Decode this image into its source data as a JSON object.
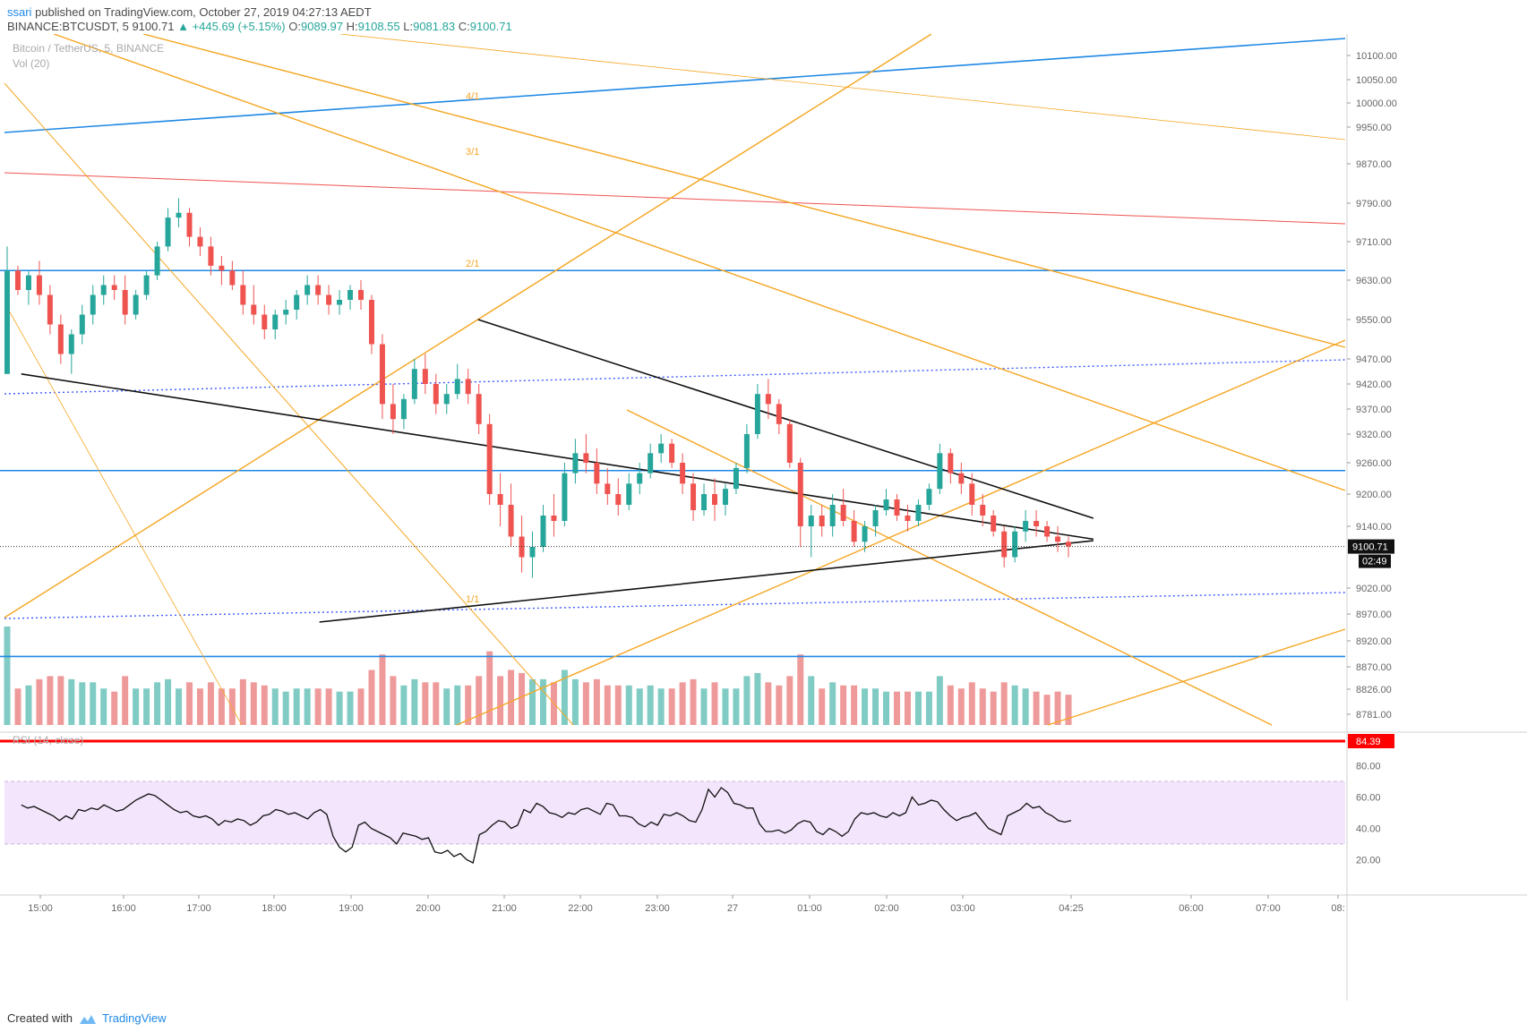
{
  "header": {
    "user": "ssari",
    "published": "published on TradingView.com, October 27, 2019 04:27:13 AEDT",
    "symbol": "BINANCE:BTCUSDT, 5",
    "last": "9100.71",
    "change_arrow": "▲",
    "change": "+445.69 (+5.15%)",
    "o_label": "O:",
    "o": "9089.97",
    "h_label": "H:",
    "h": "9108.55",
    "l_label": "L:",
    "l": "9081.83",
    "c_label": "C:",
    "c": "9100.71"
  },
  "legend": {
    "series": "Bitcoin / TetherUS, 5, BINANCE",
    "vol": "Vol (20)",
    "rsi": "RSI (14, close)"
  },
  "footer": {
    "created": "Created with",
    "brand": "TradingView"
  },
  "colors": {
    "up": "#26a69a",
    "down": "#ef5350",
    "orange": "#f5a623",
    "blue": "#1e88e5",
    "red": "#ff0000",
    "rsi_band": "#f3e5fc"
  },
  "chart_data": {
    "type": "candlestick",
    "interval_minutes": 5,
    "x_ticks": [
      "15:00",
      "16:00",
      "17:00",
      "18:00",
      "19:00",
      "20:00",
      "21:00",
      "22:00",
      "23:00",
      "27",
      "01:00",
      "02:00",
      "03:00",
      "04:25",
      "06:00",
      "07:00",
      "08:"
    ],
    "y_ticks": [
      10100,
      10050,
      10000,
      9950,
      9870,
      9790,
      9710,
      9630,
      9550,
      9470,
      9420,
      9370,
      9320,
      9260,
      9200,
      9140,
      9020,
      8970,
      8920,
      8870,
      8826,
      8781
    ],
    "y_range": [
      8781,
      10120
    ],
    "last_price_label": "9100.71",
    "countdown_label": "02:49",
    "rsi": {
      "ticks": [
        "80.00",
        "60.00",
        "40.00",
        "20.00"
      ],
      "band": [
        30,
        70
      ],
      "level_label": "84.39",
      "series": [
        55,
        53,
        54,
        52,
        50,
        48,
        45,
        48,
        46,
        52,
        51,
        53,
        52,
        55,
        53,
        51,
        52,
        55,
        58,
        60,
        62,
        61,
        58,
        55,
        52,
        50,
        51,
        48,
        47,
        48,
        46,
        42,
        45,
        44,
        46,
        45,
        42,
        44,
        48,
        49,
        52,
        51,
        49,
        50,
        48,
        46,
        50,
        52,
        49,
        35,
        28,
        25,
        28,
        42,
        44,
        40,
        38,
        36,
        34,
        30,
        37,
        36,
        35,
        33,
        34,
        25,
        24,
        26,
        22,
        24,
        20,
        18,
        36,
        38,
        42,
        45,
        44,
        40,
        42,
        52,
        50,
        56,
        54,
        50,
        49,
        47,
        50,
        49,
        52,
        53,
        51,
        49,
        56,
        55,
        48,
        48,
        47,
        43,
        41,
        44,
        42,
        49,
        48,
        50,
        48,
        45,
        44,
        52,
        65,
        60,
        66,
        63,
        56,
        55,
        53,
        53,
        43,
        38,
        38,
        39,
        37,
        39,
        43,
        45,
        44,
        38,
        36,
        40,
        38,
        35,
        38,
        46,
        50,
        49,
        50,
        48,
        47,
        50,
        48,
        50,
        60,
        55,
        56,
        58,
        57,
        52,
        48,
        45,
        47,
        48,
        50,
        45,
        40,
        38,
        36,
        48,
        50,
        52,
        56,
        53,
        54,
        50,
        48,
        45,
        44,
        45
      ],
      "x_start": "14:45",
      "x_end": "04:25"
    },
    "candles": [
      [
        9440,
        9700,
        9440,
        9650
      ],
      [
        9650,
        9660,
        9600,
        9610
      ],
      [
        9610,
        9650,
        9580,
        9640
      ],
      [
        9640,
        9670,
        9580,
        9600
      ],
      [
        9600,
        9620,
        9520,
        9540
      ],
      [
        9540,
        9560,
        9460,
        9480
      ],
      [
        9480,
        9530,
        9440,
        9520
      ],
      [
        9520,
        9580,
        9500,
        9560
      ],
      [
        9560,
        9620,
        9540,
        9600
      ],
      [
        9600,
        9640,
        9580,
        9620
      ],
      [
        9620,
        9640,
        9590,
        9610
      ],
      [
        9610,
        9640,
        9540,
        9560
      ],
      [
        9560,
        9610,
        9550,
        9600
      ],
      [
        9600,
        9650,
        9590,
        9640
      ],
      [
        9640,
        9710,
        9630,
        9700
      ],
      [
        9700,
        9780,
        9690,
        9760
      ],
      [
        9760,
        9800,
        9740,
        9770
      ],
      [
        9770,
        9780,
        9700,
        9720
      ],
      [
        9720,
        9740,
        9680,
        9700
      ],
      [
        9700,
        9720,
        9640,
        9660
      ],
      [
        9660,
        9680,
        9620,
        9650
      ],
      [
        9650,
        9670,
        9610,
        9620
      ],
      [
        9620,
        9650,
        9560,
        9580
      ],
      [
        9580,
        9620,
        9540,
        9560
      ],
      [
        9560,
        9580,
        9510,
        9530
      ],
      [
        9530,
        9570,
        9510,
        9560
      ],
      [
        9560,
        9590,
        9540,
        9570
      ],
      [
        9570,
        9610,
        9550,
        9600
      ],
      [
        9600,
        9640,
        9580,
        9620
      ],
      [
        9620,
        9640,
        9580,
        9600
      ],
      [
        9600,
        9620,
        9560,
        9580
      ],
      [
        9580,
        9610,
        9560,
        9590
      ],
      [
        9590,
        9620,
        9570,
        9610
      ],
      [
        9610,
        9630,
        9570,
        9590
      ],
      [
        9590,
        9600,
        9480,
        9500
      ],
      [
        9500,
        9520,
        9350,
        9380
      ],
      [
        9380,
        9420,
        9320,
        9350
      ],
      [
        9350,
        9400,
        9330,
        9390
      ],
      [
        9390,
        9470,
        9380,
        9450
      ],
      [
        9450,
        9480,
        9400,
        9420
      ],
      [
        9420,
        9440,
        9360,
        9380
      ],
      [
        9380,
        9420,
        9360,
        9400
      ],
      [
        9400,
        9460,
        9390,
        9430
      ],
      [
        9430,
        9450,
        9380,
        9400
      ],
      [
        9400,
        9420,
        9320,
        9340
      ],
      [
        9340,
        9360,
        9180,
        9200
      ],
      [
        9200,
        9240,
        9140,
        9180
      ],
      [
        9180,
        9220,
        9100,
        9120
      ],
      [
        9120,
        9160,
        9050,
        9080
      ],
      [
        9080,
        9130,
        9040,
        9100
      ],
      [
        9100,
        9180,
        9090,
        9160
      ],
      [
        9160,
        9200,
        9120,
        9150
      ],
      [
        9150,
        9260,
        9140,
        9240
      ],
      [
        9240,
        9310,
        9220,
        9280
      ],
      [
        9280,
        9320,
        9240,
        9260
      ],
      [
        9260,
        9290,
        9200,
        9220
      ],
      [
        9220,
        9250,
        9180,
        9200
      ],
      [
        9200,
        9230,
        9160,
        9180
      ],
      [
        9180,
        9240,
        9170,
        9220
      ],
      [
        9220,
        9260,
        9200,
        9240
      ],
      [
        9240,
        9300,
        9230,
        9280
      ],
      [
        9280,
        9320,
        9260,
        9300
      ],
      [
        9300,
        9310,
        9250,
        9260
      ],
      [
        9260,
        9280,
        9200,
        9220
      ],
      [
        9220,
        9240,
        9150,
        9170
      ],
      [
        9170,
        9220,
        9160,
        9200
      ],
      [
        9200,
        9230,
        9150,
        9180
      ],
      [
        9180,
        9220,
        9160,
        9210
      ],
      [
        9210,
        9260,
        9200,
        9250
      ],
      [
        9250,
        9340,
        9240,
        9320
      ],
      [
        9320,
        9420,
        9310,
        9400
      ],
      [
        9400,
        9430,
        9350,
        9380
      ],
      [
        9380,
        9390,
        9320,
        9340
      ],
      [
        9340,
        9350,
        9250,
        9260
      ],
      [
        9260,
        9270,
        9100,
        9140
      ],
      [
        9140,
        9180,
        9080,
        9160
      ],
      [
        9160,
        9180,
        9120,
        9140
      ],
      [
        9140,
        9200,
        9120,
        9180
      ],
      [
        9180,
        9210,
        9140,
        9150
      ],
      [
        9150,
        9170,
        9100,
        9110
      ],
      [
        9110,
        9150,
        9090,
        9140
      ],
      [
        9140,
        9180,
        9120,
        9170
      ],
      [
        9170,
        9210,
        9160,
        9190
      ],
      [
        9190,
        9200,
        9150,
        9160
      ],
      [
        9160,
        9180,
        9130,
        9150
      ],
      [
        9150,
        9190,
        9140,
        9180
      ],
      [
        9180,
        9220,
        9170,
        9210
      ],
      [
        9210,
        9300,
        9200,
        9280
      ],
      [
        9280,
        9290,
        9220,
        9240
      ],
      [
        9240,
        9260,
        9200,
        9220
      ],
      [
        9220,
        9240,
        9160,
        9180
      ],
      [
        9180,
        9200,
        9140,
        9160
      ],
      [
        9160,
        9170,
        9120,
        9130
      ],
      [
        9130,
        9140,
        9060,
        9080
      ],
      [
        9080,
        9140,
        9070,
        9130
      ],
      [
        9130,
        9170,
        9110,
        9150
      ],
      [
        9150,
        9170,
        9120,
        9140
      ],
      [
        9140,
        9150,
        9110,
        9120
      ],
      [
        9120,
        9140,
        9090,
        9110
      ],
      [
        9110,
        9120,
        9080,
        9101
      ]
    ],
    "trendlines": [
      {
        "color": "black",
        "from": [
          "14:45",
          9440
        ],
        "to": [
          "04:50",
          9115
        ]
      },
      {
        "color": "black",
        "from": [
          "20:45",
          9550
        ],
        "to": [
          "04:50",
          9155
        ]
      },
      {
        "color": "black",
        "from": [
          "18:40",
          8955
        ],
        "to": [
          "04:50",
          9112
        ]
      },
      {
        "color": "blue",
        "level": 9650
      },
      {
        "color": "blue",
        "level": 9245
      },
      {
        "color": "blue",
        "level": 8890
      }
    ],
    "fan_labels": [
      "4/1",
      "3/1",
      "2/1",
      "1/1"
    ]
  }
}
